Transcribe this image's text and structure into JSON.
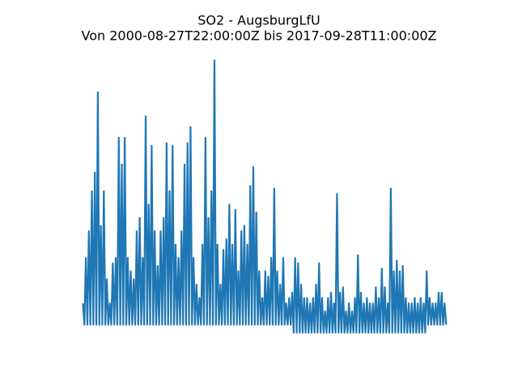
{
  "chart_data": {
    "type": "line",
    "title": "SO2 - AugsburgLfU",
    "subtitle": "Von 2000-08-27T22:00:00Z bis 2017-09-28T11:00:00Z",
    "xlim": [
      1999.8,
      2018.6
    ],
    "ylim": [
      -8,
      104
    ],
    "axis_visible": false,
    "series": [
      {
        "name": "SO2",
        "color": "#1f77b4",
        "x": [
          2000.65,
          2000.72,
          2000.79,
          2000.86,
          2000.93,
          2001.0,
          2001.07,
          2001.14,
          2001.21,
          2001.28,
          2001.35,
          2001.42,
          2001.49,
          2001.56,
          2001.63,
          2001.7,
          2001.77,
          2001.84,
          2001.91,
          2001.98,
          2002.05,
          2002.12,
          2002.19,
          2002.26,
          2002.33,
          2002.4,
          2002.47,
          2002.54,
          2002.61,
          2002.68,
          2002.75,
          2002.82,
          2002.89,
          2002.96,
          2003.03,
          2003.1,
          2003.17,
          2003.24,
          2003.31,
          2003.38,
          2003.45,
          2003.52,
          2003.59,
          2003.66,
          2003.73,
          2003.8,
          2003.87,
          2003.94,
          2004.01,
          2004.08,
          2004.15,
          2004.22,
          2004.29,
          2004.36,
          2004.43,
          2004.5,
          2004.57,
          2004.64,
          2004.71,
          2004.78,
          2004.85,
          2004.92,
          2004.99,
          2005.06,
          2005.13,
          2005.2,
          2005.27,
          2005.34,
          2005.41,
          2005.48,
          2005.55,
          2005.62,
          2005.69,
          2005.76,
          2005.83,
          2005.9,
          2005.97,
          2006.04,
          2006.11,
          2006.18,
          2006.25,
          2006.32,
          2006.39,
          2006.46,
          2006.53,
          2006.6,
          2006.67,
          2006.74,
          2006.81,
          2006.88,
          2006.95,
          2007.02,
          2007.09,
          2007.16,
          2007.23,
          2007.3,
          2007.37,
          2007.44,
          2007.51,
          2007.58,
          2007.65,
          2007.72,
          2007.79,
          2007.86,
          2007.93,
          2008.0,
          2008.07,
          2008.14,
          2008.21,
          2008.28,
          2008.35,
          2008.42,
          2008.49,
          2008.56,
          2008.63,
          2008.7,
          2008.77,
          2008.84,
          2008.91,
          2008.98,
          2009.05,
          2009.12,
          2009.19,
          2009.26,
          2009.33,
          2009.4,
          2009.47,
          2009.54,
          2009.61,
          2009.68,
          2009.75,
          2009.82,
          2009.89,
          2009.96,
          2010.03,
          2010.1,
          2010.17,
          2010.24,
          2010.31,
          2010.38,
          2010.45,
          2010.52,
          2010.59,
          2010.66,
          2010.73,
          2010.8,
          2010.87,
          2010.94,
          2011.01,
          2011.08,
          2011.15,
          2011.22,
          2011.29,
          2011.36,
          2011.43,
          2011.5,
          2011.57,
          2011.64,
          2011.71,
          2011.78,
          2011.85,
          2011.92,
          2011.99,
          2012.06,
          2012.13,
          2012.2,
          2012.27,
          2012.34,
          2012.41,
          2012.48,
          2012.55,
          2012.62,
          2012.69,
          2012.76,
          2012.83,
          2012.9,
          2012.97,
          2013.04,
          2013.11,
          2013.18,
          2013.25,
          2013.32,
          2013.39,
          2013.46,
          2013.53,
          2013.6,
          2013.67,
          2013.74,
          2013.81,
          2013.88,
          2013.95,
          2014.02,
          2014.09,
          2014.16,
          2014.23,
          2014.3,
          2014.37,
          2014.44,
          2014.51,
          2014.58,
          2014.65,
          2014.72,
          2014.79,
          2014.86,
          2014.93,
          2015.0,
          2015.07,
          2015.14,
          2015.21,
          2015.28,
          2015.35,
          2015.42,
          2015.49,
          2015.56,
          2015.63,
          2015.7,
          2015.77,
          2015.84,
          2015.91,
          2015.98,
          2016.05,
          2016.12,
          2016.19,
          2016.26,
          2016.33,
          2016.4,
          2016.47,
          2016.54,
          2016.61,
          2016.68,
          2016.75,
          2016.82,
          2016.89,
          2016.96,
          2017.03,
          2017.1,
          2017.17,
          2017.24,
          2017.31,
          2017.38,
          2017.45,
          2017.52,
          2017.59,
          2017.66
        ],
        "values": [
          8,
          0,
          25,
          0,
          35,
          0,
          50,
          0,
          57,
          0,
          87,
          0,
          37,
          0,
          50,
          0,
          17,
          0,
          8,
          0,
          23,
          0,
          25,
          0,
          70,
          0,
          60,
          0,
          70,
          0,
          25,
          0,
          20,
          0,
          17,
          0,
          35,
          0,
          40,
          0,
          25,
          0,
          78,
          0,
          45,
          0,
          67,
          0,
          35,
          0,
          22,
          0,
          35,
          0,
          40,
          0,
          68,
          0,
          50,
          0,
          67,
          0,
          30,
          0,
          25,
          0,
          35,
          0,
          60,
          0,
          68,
          0,
          74,
          0,
          25,
          0,
          15,
          0,
          10,
          0,
          30,
          0,
          70,
          0,
          40,
          0,
          50,
          0,
          99,
          0,
          30,
          0,
          15,
          0,
          28,
          0,
          32,
          0,
          45,
          0,
          30,
          0,
          43,
          0,
          20,
          0,
          35,
          0,
          37,
          0,
          30,
          0,
          52,
          0,
          59,
          0,
          42,
          0,
          20,
          0,
          10,
          0,
          20,
          0,
          18,
          0,
          25,
          0,
          51,
          0,
          20,
          0,
          15,
          0,
          25,
          0,
          8,
          0,
          10,
          0,
          12,
          -3,
          25,
          -3,
          23,
          -3,
          15,
          -3,
          10,
          -3,
          10,
          -3,
          8,
          -3,
          10,
          -3,
          15,
          -3,
          23,
          -3,
          10,
          -3,
          5,
          -3,
          10,
          -3,
          12,
          -3,
          8,
          -3,
          49,
          -3,
          12,
          -3,
          14,
          -3,
          5,
          -3,
          8,
          -3,
          5,
          -3,
          10,
          -3,
          26,
          -3,
          12,
          -3,
          8,
          -3,
          10,
          -3,
          8,
          -3,
          8,
          -3,
          14,
          -3,
          10,
          -3,
          21,
          -3,
          14,
          -3,
          8,
          -3,
          51,
          -3,
          20,
          -3,
          24,
          -3,
          20,
          -3,
          22,
          -3,
          10,
          -3,
          8,
          -3,
          8,
          -3,
          10,
          -3,
          8,
          -3,
          10,
          -3,
          8,
          -3,
          20,
          0,
          10,
          0,
          8,
          0,
          8,
          0,
          12,
          0,
          12,
          0,
          8,
          0
        ]
      }
    ]
  }
}
